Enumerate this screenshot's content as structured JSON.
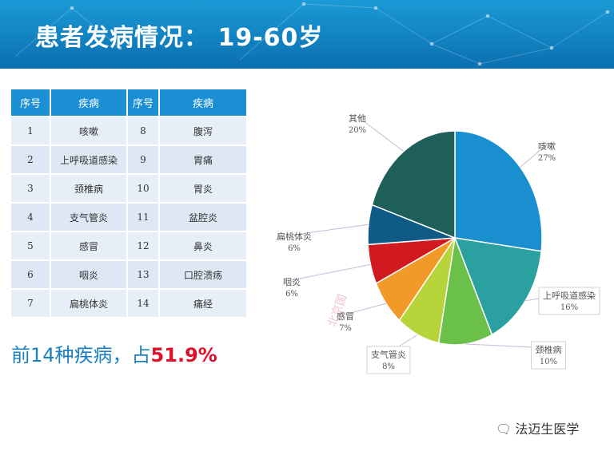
{
  "header": {
    "title": "患者发病情况： 19-60岁"
  },
  "table": {
    "headers": [
      "序号",
      "疾病",
      "序号",
      "疾病"
    ],
    "rows": [
      [
        "1",
        "咳嗽",
        "8",
        "腹泻"
      ],
      [
        "2",
        "上呼吸道感染",
        "9",
        "胃痛"
      ],
      [
        "3",
        "颈椎病",
        "10",
        "胃炎"
      ],
      [
        "4",
        "支气管炎",
        "11",
        "盆腔炎"
      ],
      [
        "5",
        "感冒",
        "12",
        "鼻炎"
      ],
      [
        "6",
        "咽炎",
        "13",
        "口腔溃疡"
      ],
      [
        "7",
        "扁桃体炎",
        "14",
        "痛经"
      ]
    ]
  },
  "summary": {
    "prefix": "前14种疾病，占",
    "percent": "51.9%"
  },
  "chart_data": {
    "type": "pie",
    "start_angle_deg": 0,
    "direction": "clockwise",
    "slices": [
      {
        "label": "咳嗽",
        "value": 27,
        "pct_label": "27%",
        "color": "#1a8fcf"
      },
      {
        "label": "上呼吸道感染",
        "value": 16,
        "pct_label": "16%",
        "color": "#2aa0a0"
      },
      {
        "label": "颈椎病",
        "value": 10,
        "pct_label": "10%",
        "color": "#6bc04a"
      },
      {
        "label": "支气管炎",
        "value": 8,
        "pct_label": "8%",
        "color": "#b7d43a"
      },
      {
        "label": "感冒",
        "value": 7,
        "pct_label": "7%",
        "color": "#f19a2a"
      },
      {
        "label": "咽炎",
        "value": 6,
        "pct_label": "6%",
        "color": "#d11a1f"
      },
      {
        "label": "扁桃体炎",
        "value": 6,
        "pct_label": "6%",
        "color": "#0f5a86"
      },
      {
        "label": "其他",
        "value": 20,
        "pct_label": "20%",
        "color": "#1f5f5a"
      }
    ]
  },
  "watermark": {
    "icon": "wechat-icon",
    "text": "法迈生医学"
  },
  "ghost_watermark": "北京国"
}
